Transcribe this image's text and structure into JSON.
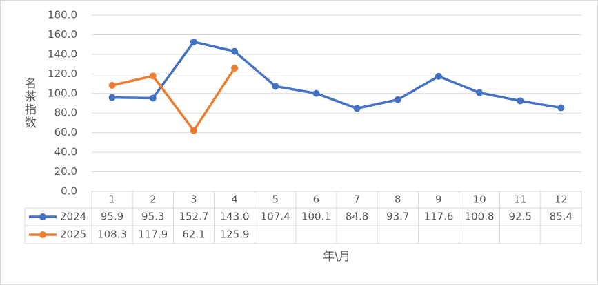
{
  "chart_data": {
    "type": "line",
    "y_label": "名茶指数",
    "x_label": "年\\月",
    "categories": [
      "1",
      "2",
      "3",
      "4",
      "5",
      "6",
      "7",
      "8",
      "9",
      "10",
      "11",
      "12"
    ],
    "series": [
      {
        "name": "2024",
        "color": "#4472c4",
        "values": [
          95.9,
          95.3,
          152.7,
          143.0,
          107.4,
          100.1,
          84.8,
          93.7,
          117.6,
          100.8,
          92.5,
          85.4
        ],
        "value_labels": [
          "95.9",
          "95.3",
          "152.7",
          "143.0",
          "107.4",
          "100.1",
          "84.8",
          "93.7",
          "117.6",
          "100.8",
          "92.5",
          "85.4"
        ]
      },
      {
        "name": "2025",
        "color": "#ed7d31",
        "values": [
          108.3,
          117.9,
          62.1,
          125.9,
          null,
          null,
          null,
          null,
          null,
          null,
          null,
          null
        ],
        "value_labels": [
          "108.3",
          "117.9",
          "62.1",
          "125.9",
          null,
          null,
          null,
          null,
          null,
          null,
          null,
          null
        ]
      }
    ],
    "ylim": [
      0,
      180
    ],
    "yticks": [
      {
        "value": 0,
        "label": "0.0"
      },
      {
        "value": 20,
        "label": "20.0"
      },
      {
        "value": 40,
        "label": "40.0"
      },
      {
        "value": 60,
        "label": "60.0"
      },
      {
        "value": 80,
        "label": "80.0"
      },
      {
        "value": 100,
        "label": "100.0"
      },
      {
        "value": 120,
        "label": "120.0"
      },
      {
        "value": 140,
        "label": "140.0"
      },
      {
        "value": 160,
        "label": "160.0"
      },
      {
        "value": 180,
        "label": "180.0"
      }
    ],
    "grid": true,
    "data_table": true
  }
}
